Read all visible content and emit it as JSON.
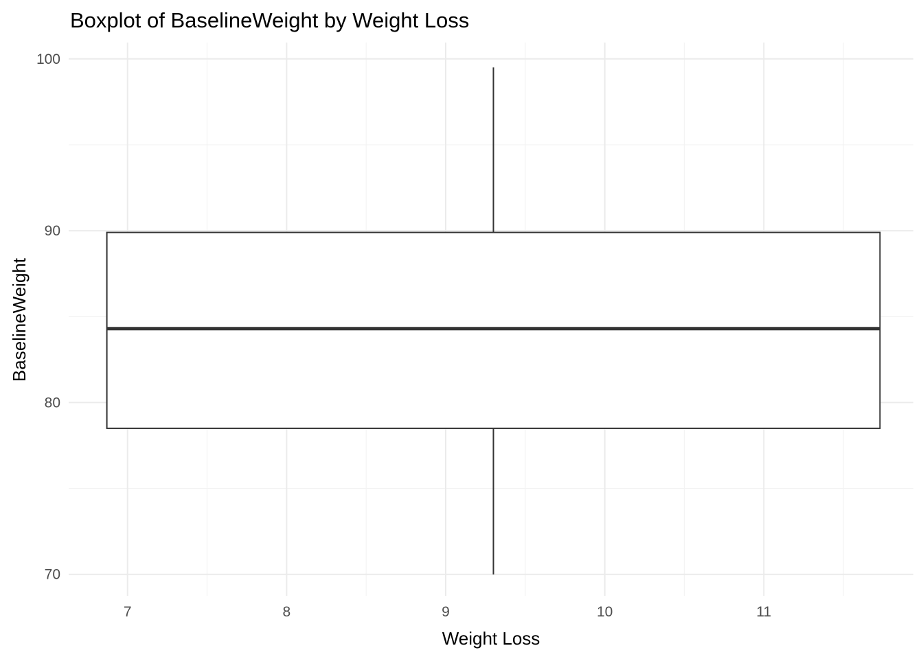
{
  "chart_data": {
    "type": "boxplot",
    "title": "Boxplot of BaselineWeight by Weight Loss",
    "xlabel": "Weight Loss",
    "ylabel": "BaselineWeight",
    "xlim": [
      6.63,
      11.94
    ],
    "ylim": [
      68.75,
      100.95
    ],
    "x_ticks": [
      7,
      8,
      9,
      10,
      11
    ],
    "y_ticks": [
      70,
      80,
      90,
      100
    ],
    "x_minor_ticks": [
      7.5,
      8.5,
      9.5,
      10.5,
      11.5
    ],
    "y_minor_ticks": [
      75,
      85,
      95
    ],
    "grid": true,
    "box": {
      "x_center": 9.3,
      "x_min": 6.87,
      "x_max": 11.73,
      "min": 70.0,
      "q1": 78.5,
      "median": 84.3,
      "q3": 89.9,
      "max": 99.5
    },
    "colors": {
      "box_fill": "#ffffff",
      "box_line": "#333333"
    }
  }
}
